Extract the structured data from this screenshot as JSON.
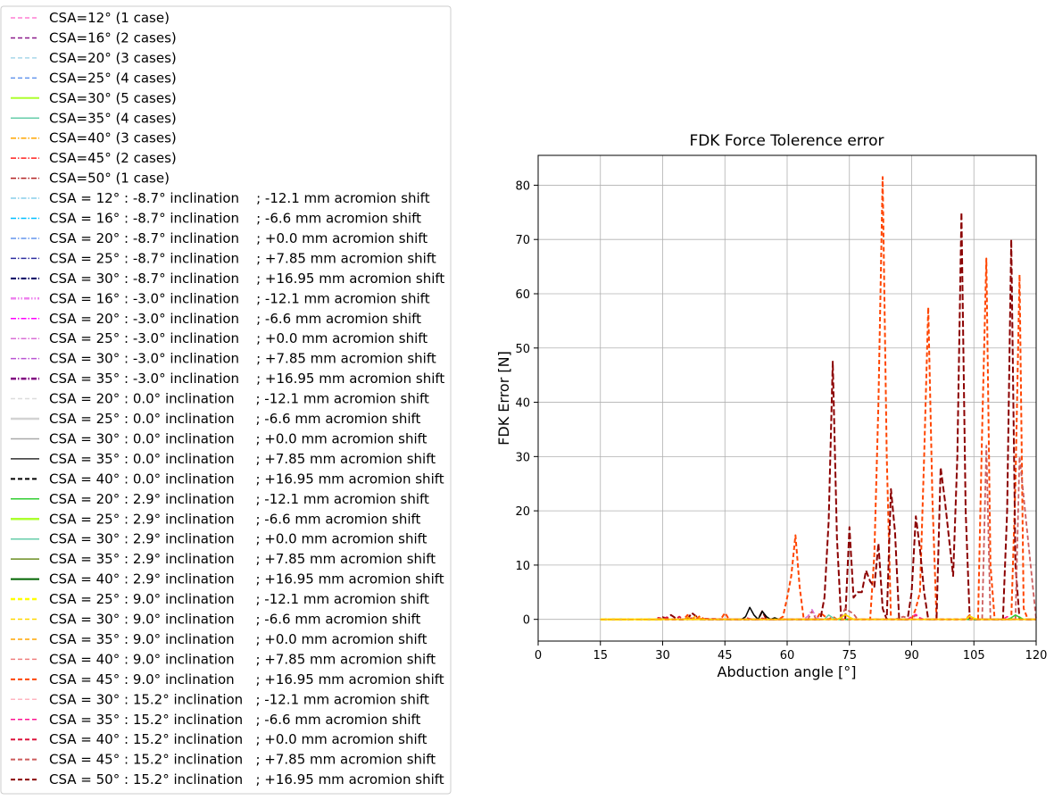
{
  "chart_data": {
    "type": "line",
    "title": "FDK Force Tolerence error",
    "xlabel": "Abduction angle [°]",
    "ylabel": "FDK Error [N]",
    "xlim": [
      0,
      120
    ],
    "ylim": [
      -4,
      85.5
    ],
    "xticks": [
      "0",
      "15",
      "30",
      "45",
      "60",
      "75",
      "90",
      "105",
      "120"
    ],
    "yticks": [
      "0",
      "10",
      "20",
      "30",
      "40",
      "50",
      "60",
      "70",
      "80"
    ],
    "grid": true,
    "legend_placement": "left, outside plot",
    "legend": [
      {
        "label": "CSA=12° (1 case)",
        "color": "#ff7fd4",
        "dash": "5,3",
        "width": 1.5
      },
      {
        "label": "CSA=16° (2 cases)",
        "color": "#8b1a89",
        "dash": "5,3",
        "width": 1.5
      },
      {
        "label": "CSA=20° (3 cases)",
        "color": "#a8d8ea",
        "dash": "5,3",
        "width": 1.5
      },
      {
        "label": "CSA=25° (4 cases)",
        "color": "#6495ed",
        "dash": "5,3",
        "width": 1.5
      },
      {
        "label": "CSA=30° (5 cases)",
        "color": "#adff2f",
        "dash": "",
        "width": 2
      },
      {
        "label": "CSA=35° (4 cases)",
        "color": "#66cdaa",
        "dash": "",
        "width": 1.5
      },
      {
        "label": "CSA=40° (3 cases)",
        "color": "#ffa500",
        "dash": "6,2,1.5,2",
        "width": 1.5
      },
      {
        "label": "CSA=45° (2 cases)",
        "color": "#ff2020",
        "dash": "6,2,1.5,2",
        "width": 1.5
      },
      {
        "label": "CSA=50° (1 case)",
        "color": "#b22222",
        "dash": "6,2,1.5,2",
        "width": 1.5
      },
      {
        "label": "CSA = 12° : -8.7° inclination    ; -12.1 mm acromion shift",
        "color": "#87ceeb",
        "dash": "6,2,1.5,2",
        "width": 1.5
      },
      {
        "label": "CSA = 16° : -8.7° inclination    ; -6.6 mm acromion shift",
        "color": "#00bfff",
        "dash": "6,2,1.5,2",
        "width": 1.5
      },
      {
        "label": "CSA = 20° : -8.7° inclination    ; +0.0 mm acromion shift",
        "color": "#6495ed",
        "dash": "6,2,1.5,2",
        "width": 1.5
      },
      {
        "label": "CSA = 25° : -8.7° inclination    ; +7.85 mm acromion shift",
        "color": "#3030a0",
        "dash": "6,2,1.5,2",
        "width": 1.5
      },
      {
        "label": "CSA = 30° : -8.7° inclination    ; +16.95 mm acromion shift",
        "color": "#000060",
        "dash": "6,2,1.5,2",
        "width": 2
      },
      {
        "label": "CSA = 16° : -3.0° inclination    ; -12.1 mm acromion shift",
        "color": "#ee82ee",
        "dash": "6,2,1.5,2,1.5,2",
        "width": 2.5
      },
      {
        "label": "CSA = 20° : -3.0° inclination    ; -6.6 mm acromion shift",
        "color": "#ff00ff",
        "dash": "6,2,1.5,2",
        "width": 1.5
      },
      {
        "label": "CSA = 25° : -3.0° inclination    ; +0.0 mm acromion shift",
        "color": "#da70d6",
        "dash": "6,2,1.5,2",
        "width": 1.5
      },
      {
        "label": "CSA = 30° : -3.0° inclination    ; +7.85 mm acromion shift",
        "color": "#ba55d3",
        "dash": "6,2,1.5,2",
        "width": 1.5
      },
      {
        "label": "CSA = 35° : -3.0° inclination    ; +16.95 mm acromion shift",
        "color": "#800080",
        "dash": "6,2,1.5,2",
        "width": 2.5
      },
      {
        "label": "CSA = 20° : 0.0° inclination     ; -12.1 mm acromion shift",
        "color": "#dcdcdc",
        "dash": "5,3",
        "width": 1.5
      },
      {
        "label": "CSA = 25° : 0.0° inclination     ; -6.6 mm acromion shift",
        "color": "#d3d3d3",
        "dash": "",
        "width": 2.5
      },
      {
        "label": "CSA = 30° : 0.0° inclination     ; +0.0 mm acromion shift",
        "color": "#a9a9a9",
        "dash": "",
        "width": 1.5
      },
      {
        "label": "CSA = 35° : 0.0° inclination     ; +7.85 mm acromion shift",
        "color": "#303030",
        "dash": "",
        "width": 1.5
      },
      {
        "label": "CSA = 40° : 0.0° inclination     ; +16.95 mm acromion shift",
        "color": "#000000",
        "dash": "5,3",
        "width": 2
      },
      {
        "label": "CSA = 20° : 2.9° inclination     ; -12.1 mm acromion shift",
        "color": "#32cd32",
        "dash": "",
        "width": 1.5
      },
      {
        "label": "CSA = 25° : 2.9° inclination     ; -6.6 mm acromion shift",
        "color": "#adff2f",
        "dash": "",
        "width": 2.5
      },
      {
        "label": "CSA = 30° : 2.9° inclination     ; +0.0 mm acromion shift",
        "color": "#66cdaa",
        "dash": "",
        "width": 1.5
      },
      {
        "label": "CSA = 35° : 2.9° inclination     ; +7.85 mm acromion shift",
        "color": "#6b8e23",
        "dash": "",
        "width": 1.5
      },
      {
        "label": "CSA = 40° : 2.9° inclination     ; +16.95 mm acromion shift",
        "color": "#006400",
        "dash": "",
        "width": 2
      },
      {
        "label": "CSA = 25° : 9.0° inclination     ; -12.1 mm acromion shift",
        "color": "#ffff00",
        "dash": "5,3",
        "width": 2.5
      },
      {
        "label": "CSA = 30° : 9.0° inclination     ; -6.6 mm acromion shift",
        "color": "#ffd700",
        "dash": "5,3",
        "width": 1.5
      },
      {
        "label": "CSA = 35° : 9.0° inclination     ; +0.0 mm acromion shift",
        "color": "#ffa500",
        "dash": "5,3",
        "width": 1.5
      },
      {
        "label": "CSA = 40° : 9.0° inclination     ; +7.85 mm acromion shift",
        "color": "#f08080",
        "dash": "5,3",
        "width": 1.5
      },
      {
        "label": "CSA = 45° : 9.0° inclination     ; +16.95 mm acromion shift",
        "color": "#ff4500",
        "dash": "5,3",
        "width": 2
      },
      {
        "label": "CSA = 30° : 15.2° inclination   ; -12.1 mm acromion shift",
        "color": "#ffb6c1",
        "dash": "5,3",
        "width": 1.5
      },
      {
        "label": "CSA = 35° : 15.2° inclination   ; -6.6 mm acromion shift",
        "color": "#ff1493",
        "dash": "5,3",
        "width": 1.5
      },
      {
        "label": "CSA = 40° : 15.2° inclination   ; +0.0 mm acromion shift",
        "color": "#dc143c",
        "dash": "5,3",
        "width": 2
      },
      {
        "label": "CSA = 45° : 15.2° inclination   ; +7.85 mm acromion shift",
        "color": "#cd5c5c",
        "dash": "5,3",
        "width": 2
      },
      {
        "label": "CSA = 50° : 15.2° inclination   ; +16.95 mm acromion shift",
        "color": "#8b0000",
        "dash": "5,3",
        "width": 2
      }
    ],
    "series": [
      {
        "name": "CSA = 45° : 9.0° inclination     ; +16.95 mm acromion shift",
        "color": "#ff4500",
        "dash": "5,3",
        "width": 2,
        "x": [
          15,
          30,
          35,
          36,
          37,
          38,
          39,
          40,
          44,
          45,
          46,
          58,
          59,
          60,
          61,
          62,
          63,
          64,
          67,
          68,
          70,
          71,
          72,
          76,
          80,
          81,
          82,
          83,
          84,
          85,
          86,
          90,
          91,
          92,
          93,
          94,
          95,
          96,
          103,
          104,
          105,
          106,
          107,
          108,
          109,
          110,
          113,
          114,
          115,
          116,
          117,
          118,
          120
        ],
        "y": [
          0,
          0,
          0,
          0.8,
          0,
          0,
          0.6,
          0,
          0,
          1.2,
          0,
          0,
          0.5,
          4,
          8,
          15.5,
          6,
          0,
          0,
          1.2,
          0,
          0.5,
          0,
          0,
          0,
          12,
          40,
          81.5,
          30,
          0,
          0,
          0,
          2,
          5,
          30,
          57.5,
          22,
          0,
          0,
          0.8,
          0,
          0,
          35,
          66.5,
          10,
          0,
          0,
          0,
          25,
          63.5,
          2,
          0,
          0
        ]
      },
      {
        "name": "CSA = 50° : 15.2° inclination   ; +16.95 mm acromion shift",
        "color": "#8b0000",
        "dash": "7,3",
        "width": 2,
        "x": [
          15,
          29,
          30,
          31,
          32,
          33,
          34,
          35,
          36,
          37,
          38,
          39,
          40,
          41,
          53,
          54,
          55,
          56,
          58,
          59,
          65,
          66,
          67,
          68,
          69,
          70,
          71,
          72,
          73,
          74,
          75,
          76,
          77,
          78,
          79,
          80,
          81,
          82,
          83,
          84,
          85,
          86,
          87,
          88,
          89,
          90,
          91,
          92,
          93,
          94,
          95,
          96,
          97,
          98,
          99,
          100,
          101,
          102,
          103,
          104,
          105,
          110,
          111,
          112,
          113,
          114,
          115,
          116,
          117,
          118,
          120
        ],
        "y": [
          0,
          0,
          0.4,
          0.2,
          0.8,
          0.3,
          0,
          0,
          0,
          1.2,
          0.6,
          0,
          0,
          0,
          0,
          1.5,
          0,
          0,
          0,
          0,
          0,
          0,
          0,
          0,
          4,
          18,
          47.5,
          15,
          0,
          0,
          17,
          4,
          5,
          5,
          9,
          7,
          6,
          14,
          2,
          0,
          24,
          16,
          0,
          0,
          0,
          5,
          19,
          13,
          5,
          0,
          0,
          0,
          28,
          22,
          15,
          8,
          30,
          75,
          20,
          0,
          0,
          0,
          0,
          0,
          20,
          70,
          10,
          0,
          0,
          0,
          0
        ]
      },
      {
        "name": "CSA = 45° : 15.2° inclination   ; +7.85 mm acromion shift",
        "color": "#cd5c5c",
        "dash": "5,3",
        "width": 1.8,
        "x": [
          15,
          60,
          63,
          65,
          66,
          67,
          70,
          72,
          73,
          74,
          75,
          76,
          77,
          80,
          86,
          88,
          90,
          91,
          92,
          107,
          108,
          109,
          114,
          115,
          116,
          120
        ],
        "y": [
          0,
          0,
          0,
          0,
          1.5,
          0,
          0,
          0,
          0.5,
          2,
          1.5,
          1,
          0,
          0,
          0,
          0.5,
          0,
          0.8,
          0,
          0,
          32,
          0,
          0,
          0,
          30,
          0
        ]
      },
      {
        "name": "CSA = 40° : 15.2° inclination   ; +0.0 mm acromion shift",
        "color": "#dc143c",
        "dash": "5,3",
        "width": 1.8,
        "x": [
          15,
          28,
          29,
          30,
          31,
          32,
          33,
          34,
          35,
          36,
          48,
          49,
          50,
          51,
          52,
          53,
          54,
          55,
          56,
          57,
          58,
          59,
          60,
          120
        ],
        "y": [
          0,
          0,
          0.3,
          0.1,
          0.4,
          0,
          0,
          0.5,
          0,
          0.2,
          0,
          0,
          0.3,
          0.1,
          0,
          0,
          0.2,
          0,
          0,
          0,
          0,
          0,
          0,
          0
        ]
      },
      {
        "name": "CSA = 40° : 0.0° inclination     ; +16.95 mm acromion shift",
        "color": "#000000",
        "dash": "",
        "width": 1.5,
        "x": [
          15,
          49,
          50,
          51,
          52,
          53,
          54,
          55,
          56,
          57,
          58,
          120
        ],
        "y": [
          0,
          0,
          0.5,
          2.2,
          0.8,
          0,
          1.5,
          0.5,
          0,
          0.3,
          0,
          0
        ]
      },
      {
        "name": "CSA = 35° : 15.2° inclination   ; -6.6 mm acromion shift",
        "color": "#ff1493",
        "dash": "5,3",
        "width": 1.5,
        "x": [
          15,
          88,
          89,
          90,
          91,
          92,
          93,
          94,
          112,
          113,
          114,
          115,
          120
        ],
        "y": [
          0,
          0,
          0,
          0.5,
          0.9,
          0.3,
          0,
          0,
          0,
          0.5,
          0,
          0,
          0
        ]
      },
      {
        "name": "CSA = 25° : -3.0° inclination    ; +0.0 mm acromion shift",
        "color": "#da70d6",
        "dash": "6,2,1.5,2",
        "width": 1.5,
        "x": [
          15,
          64,
          65,
          66,
          67,
          68,
          120
        ],
        "y": [
          0,
          0,
          0.6,
          1.8,
          0.4,
          0,
          0
        ]
      },
      {
        "name": "CSA = 30° : 2.9° inclination     ; +0.0 mm acromion shift",
        "color": "#66cdaa",
        "dash": "",
        "width": 1.5,
        "x": [
          15,
          69,
          70,
          71,
          72,
          120
        ],
        "y": [
          0,
          0,
          0.8,
          0.3,
          0,
          0
        ]
      },
      {
        "name": "CSA = 20° : 2.9° inclination     ; -12.1 mm acromion shift",
        "color": "#32cd32",
        "dash": "",
        "width": 1.5,
        "x": [
          15,
          112,
          113,
          114,
          115,
          116,
          117,
          120
        ],
        "y": [
          0,
          0,
          0,
          0.3,
          0.8,
          0.4,
          0,
          0
        ]
      },
      {
        "name": "CSA = 30° : 9.0° inclination     ; -6.6 mm acromion shift",
        "color": "#ffd700",
        "dash": "",
        "width": 1.8,
        "x": [
          15,
          72,
          73,
          74,
          75,
          76,
          103,
          104,
          105,
          106,
          120
        ],
        "y": [
          0,
          0,
          0.3,
          0.9,
          0.4,
          0,
          0,
          0.6,
          0.2,
          0,
          0
        ]
      },
      {
        "name": "CSA = 25° : 9.0° inclination     ; -12.1 mm acromion shift",
        "color": "#ffff00",
        "dash": "5,3",
        "width": 2.5,
        "x": [
          15,
          17,
          18,
          19,
          20,
          21,
          22,
          23,
          24,
          25,
          26,
          27,
          28,
          29,
          30
        ],
        "y": [
          0,
          0,
          0,
          0,
          0,
          0,
          0,
          0,
          0,
          0,
          0,
          0,
          0,
          0,
          0
        ]
      },
      {
        "name": "CSA = 35° : 9.0° inclination     ; +0.0 mm acromion shift",
        "color": "#ffa500",
        "dash": "5,3",
        "width": 1.5,
        "x": [
          15,
          35,
          36,
          37,
          38,
          39,
          40,
          120
        ],
        "y": [
          0,
          0,
          0.4,
          0.1,
          0.6,
          0.2,
          0,
          0
        ]
      }
    ]
  }
}
